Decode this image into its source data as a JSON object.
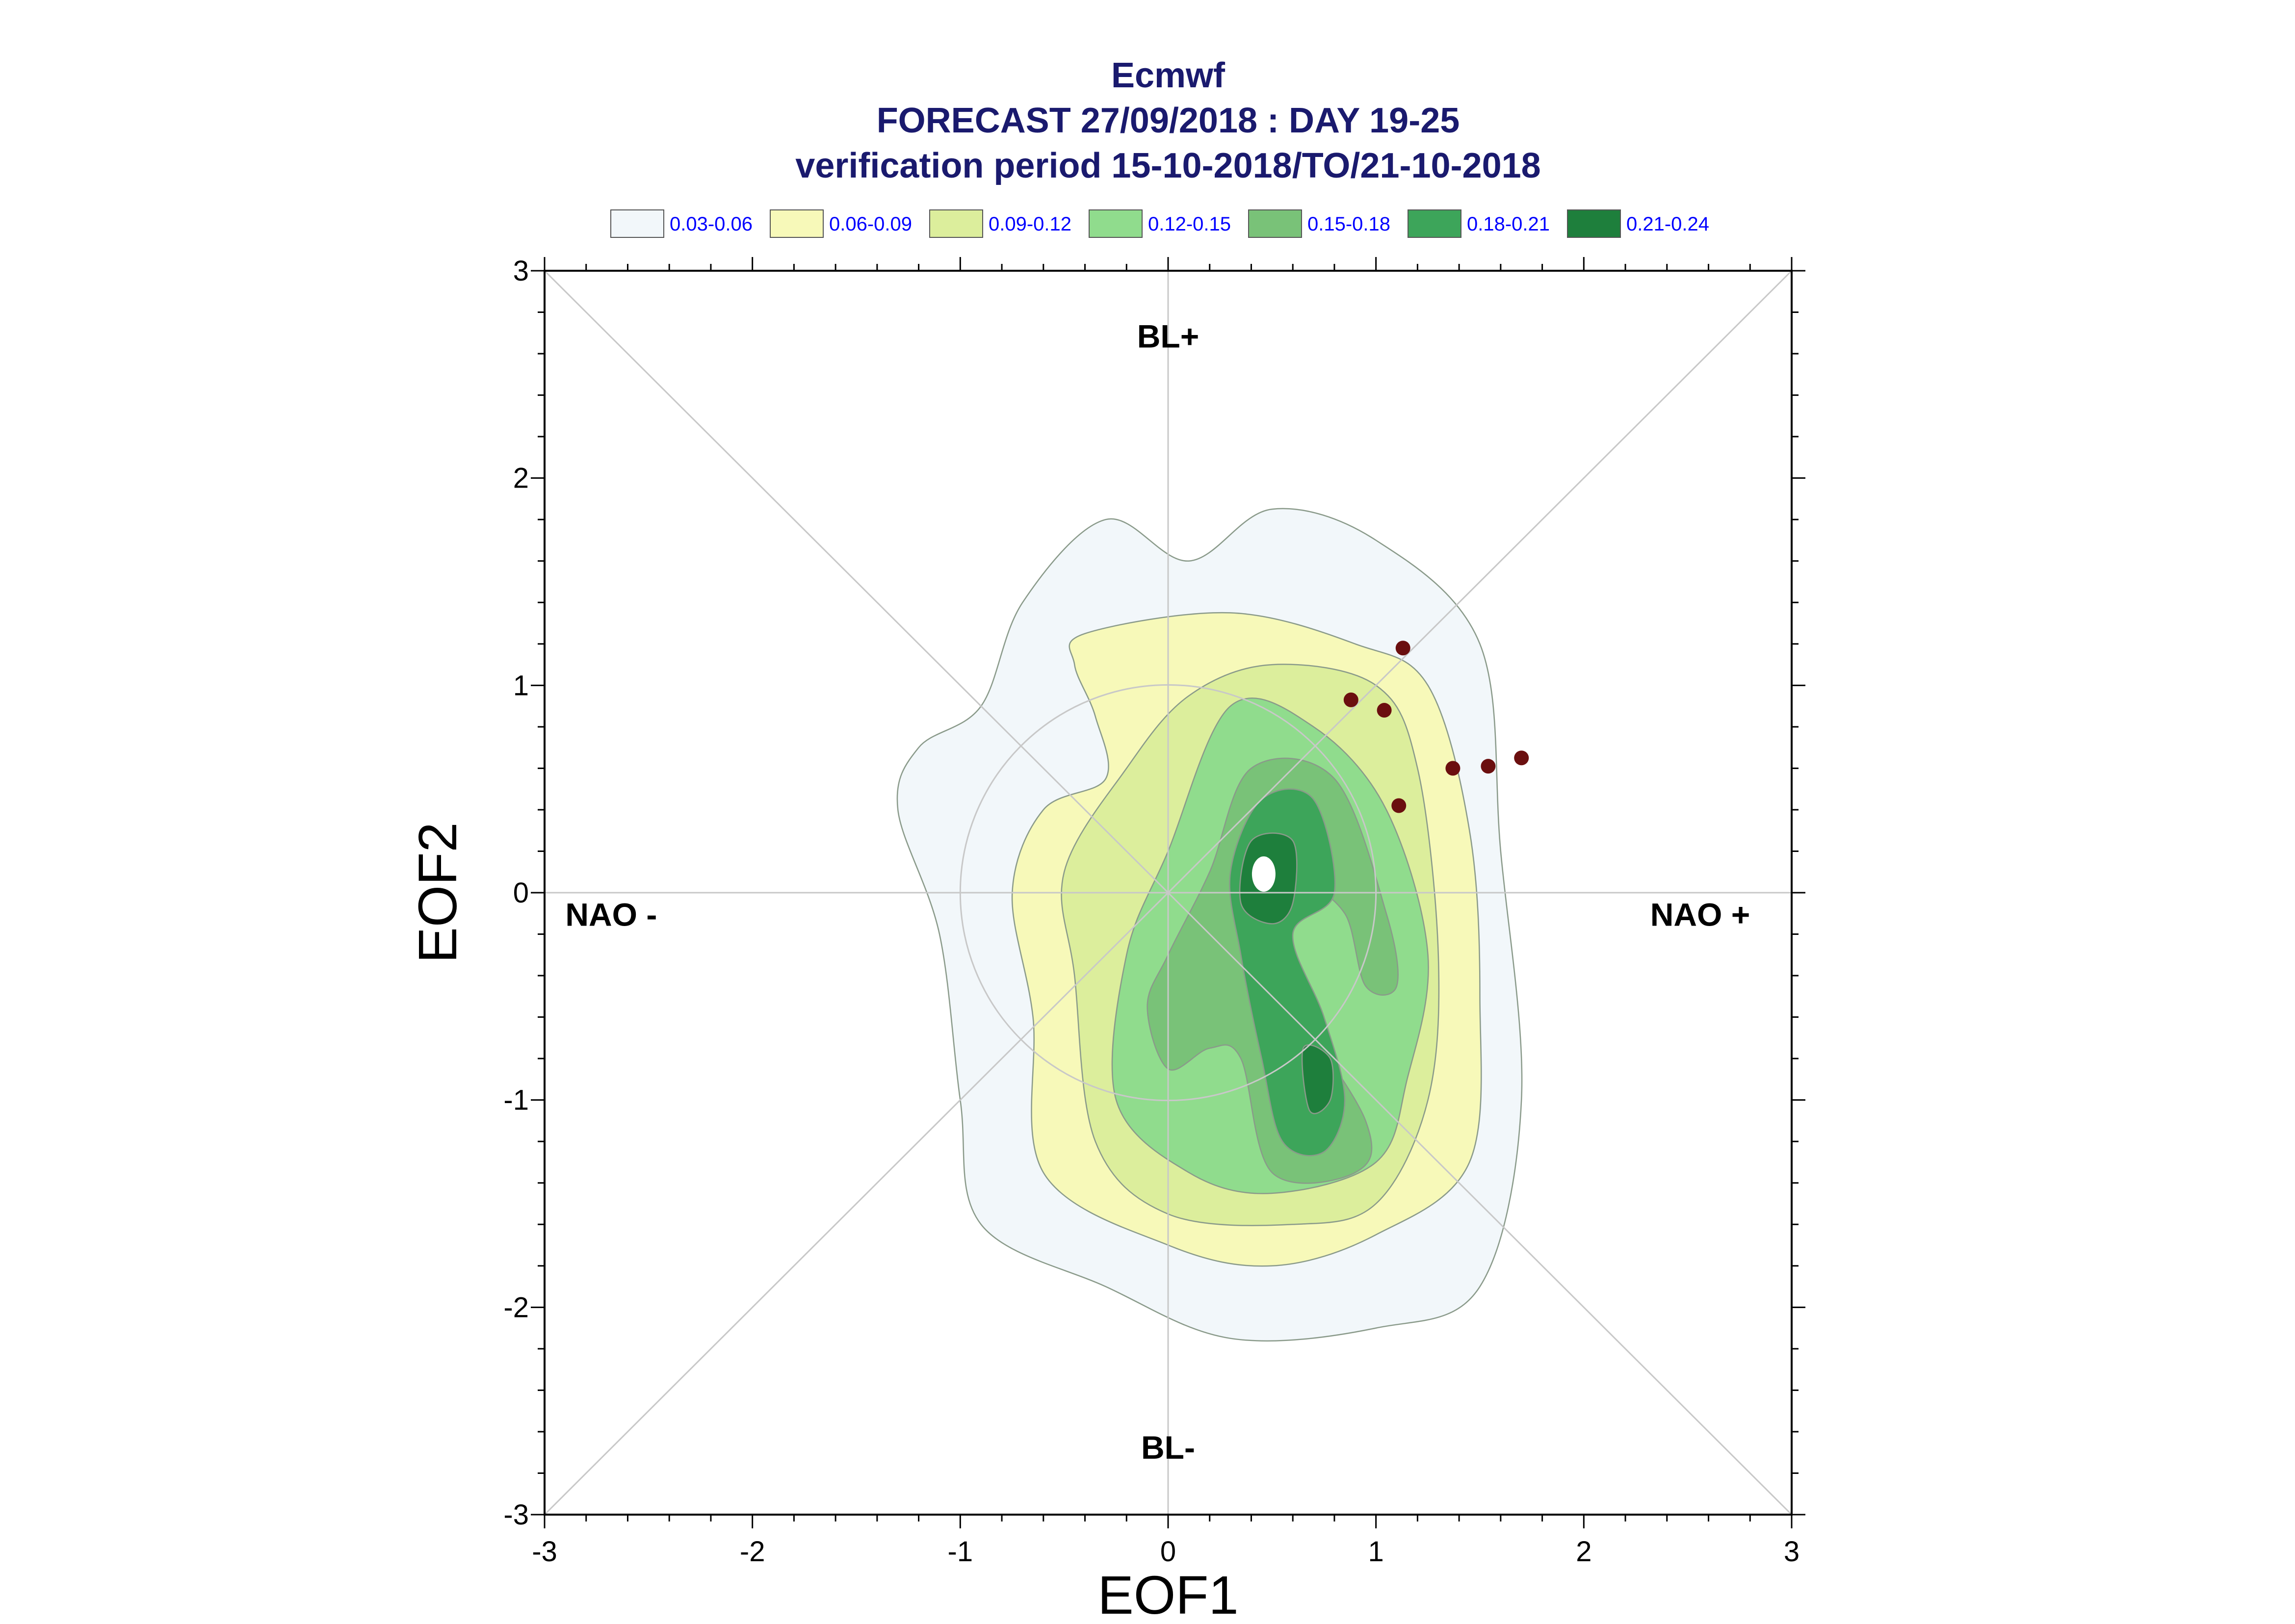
{
  "chart_data": {
    "type": "contour",
    "title_lines": [
      "Ecmwf",
      "FORECAST 27/09/2018 : DAY 19-25",
      "verification period 15-10-2018/TO/21-10-2018"
    ],
    "xlabel": "EOF1",
    "ylabel": "EOF2",
    "xlim": [
      -3,
      3
    ],
    "ylim": [
      -3,
      3
    ],
    "x_ticks": [
      "-3",
      "-2",
      "-1",
      "0",
      "1",
      "2",
      "3"
    ],
    "y_ticks": [
      "-3",
      "-2",
      "-1",
      "0",
      "1",
      "2",
      "3"
    ],
    "legend": [
      {
        "label": "0.03-0.06",
        "color": "#f2f7fa"
      },
      {
        "label": "0.06-0.09",
        "color": "#f7f9b9"
      },
      {
        "label": "0.09-0.12",
        "color": "#dcee9c"
      },
      {
        "label": "0.12-0.15",
        "color": "#90dc8d"
      },
      {
        "label": "0.15-0.18",
        "color": "#79c278"
      },
      {
        "label": "0.18-0.21",
        "color": "#3da55a"
      },
      {
        "label": "0.21-0.24",
        "color": "#1e7f3c"
      }
    ],
    "region_labels": {
      "top": "BL+",
      "bottom": "BL-",
      "left": "NAO -",
      "right": "NAO +"
    },
    "grid": "diagonals, zero lines and unit circle",
    "legend_position": "top",
    "contours": [
      {
        "level": 0,
        "points": [
          [
            -0.7,
            1.4
          ],
          [
            -0.3,
            1.8
          ],
          [
            0.1,
            1.6
          ],
          [
            0.5,
            1.85
          ],
          [
            1.0,
            1.7
          ],
          [
            1.5,
            1.2
          ],
          [
            1.6,
            0.2
          ],
          [
            1.7,
            -1.0
          ],
          [
            1.5,
            -1.9
          ],
          [
            1.0,
            -2.1
          ],
          [
            0.3,
            -2.15
          ],
          [
            -0.3,
            -1.9
          ],
          [
            -0.9,
            -1.6
          ],
          [
            -1.0,
            -1.0
          ],
          [
            -1.1,
            -0.2
          ],
          [
            -1.3,
            0.4
          ],
          [
            -1.2,
            0.7
          ],
          [
            -0.9,
            0.9
          ]
        ]
      },
      {
        "level": 1,
        "points": [
          [
            -0.4,
            1.25
          ],
          [
            0.3,
            1.35
          ],
          [
            0.9,
            1.2
          ],
          [
            1.25,
            1.0
          ],
          [
            1.45,
            0.3
          ],
          [
            1.5,
            -0.5
          ],
          [
            1.45,
            -1.3
          ],
          [
            1.0,
            -1.65
          ],
          [
            0.5,
            -1.8
          ],
          [
            0.0,
            -1.7
          ],
          [
            -0.6,
            -1.35
          ],
          [
            -0.65,
            -0.6
          ],
          [
            -0.75,
            0.0
          ],
          [
            -0.6,
            0.4
          ],
          [
            -0.3,
            0.55
          ],
          [
            -0.35,
            0.85
          ],
          [
            -0.45,
            1.1
          ]
        ]
      },
      {
        "level": 2,
        "points": [
          [
            0.1,
            0.95
          ],
          [
            0.5,
            1.1
          ],
          [
            1.0,
            1.0
          ],
          [
            1.2,
            0.6
          ],
          [
            1.3,
            -0.3
          ],
          [
            1.25,
            -1.0
          ],
          [
            1.0,
            -1.5
          ],
          [
            0.6,
            -1.6
          ],
          [
            0.0,
            -1.55
          ],
          [
            -0.35,
            -1.2
          ],
          [
            -0.45,
            -0.4
          ],
          [
            -0.5,
            0.1
          ],
          [
            -0.2,
            0.6
          ]
        ]
      },
      {
        "level": 3,
        "points": [
          [
            0.3,
            0.9
          ],
          [
            0.7,
            0.8
          ],
          [
            1.05,
            0.4
          ],
          [
            1.25,
            -0.3
          ],
          [
            1.15,
            -0.9
          ],
          [
            1.0,
            -1.3
          ],
          [
            0.5,
            -1.45
          ],
          [
            0.1,
            -1.35
          ],
          [
            -0.25,
            -1.0
          ],
          [
            -0.2,
            -0.3
          ],
          [
            0.0,
            0.2
          ]
        ]
      },
      {
        "level": 4,
        "points": [
          [
            0.4,
            0.6
          ],
          [
            0.8,
            0.55
          ],
          [
            1.05,
            -0.1
          ],
          [
            1.1,
            -0.45
          ],
          [
            0.95,
            -0.45
          ],
          [
            0.85,
            -0.1
          ],
          [
            0.65,
            0.0
          ],
          [
            0.55,
            -0.4
          ],
          [
            0.95,
            -1.1
          ],
          [
            0.9,
            -1.35
          ],
          [
            0.5,
            -1.35
          ],
          [
            0.35,
            -0.8
          ],
          [
            0.2,
            -0.75
          ],
          [
            0.0,
            -0.85
          ],
          [
            -0.1,
            -0.55
          ],
          [
            0.0,
            -0.3
          ],
          [
            0.2,
            0.1
          ]
        ]
      },
      {
        "level": 5,
        "points": [
          [
            0.45,
            0.45
          ],
          [
            0.7,
            0.45
          ],
          [
            0.8,
            0.0
          ],
          [
            0.6,
            -0.2
          ],
          [
            0.75,
            -0.6
          ],
          [
            0.85,
            -1.0
          ],
          [
            0.75,
            -1.25
          ],
          [
            0.55,
            -1.2
          ],
          [
            0.45,
            -0.8
          ],
          [
            0.35,
            -0.3
          ],
          [
            0.3,
            0.1
          ]
        ]
      },
      {
        "level": 6,
        "points": [
          [
            0.4,
            0.25
          ],
          [
            0.6,
            0.25
          ],
          [
            0.6,
            -0.05
          ],
          [
            0.5,
            -0.15
          ],
          [
            0.35,
            -0.05
          ]
        ]
      },
      {
        "level": 6,
        "points": [
          [
            0.65,
            -0.75
          ],
          [
            0.78,
            -0.8
          ],
          [
            0.78,
            -1.0
          ],
          [
            0.68,
            -1.05
          ]
        ]
      }
    ],
    "points": [
      {
        "x": 1.13,
        "y": 1.18
      },
      {
        "x": 0.88,
        "y": 0.93
      },
      {
        "x": 1.04,
        "y": 0.88
      },
      {
        "x": 1.37,
        "y": 0.6
      },
      {
        "x": 1.54,
        "y": 0.61
      },
      {
        "x": 1.7,
        "y": 0.65
      },
      {
        "x": 1.11,
        "y": 0.42
      }
    ],
    "point_color": "#6b0f0f"
  }
}
